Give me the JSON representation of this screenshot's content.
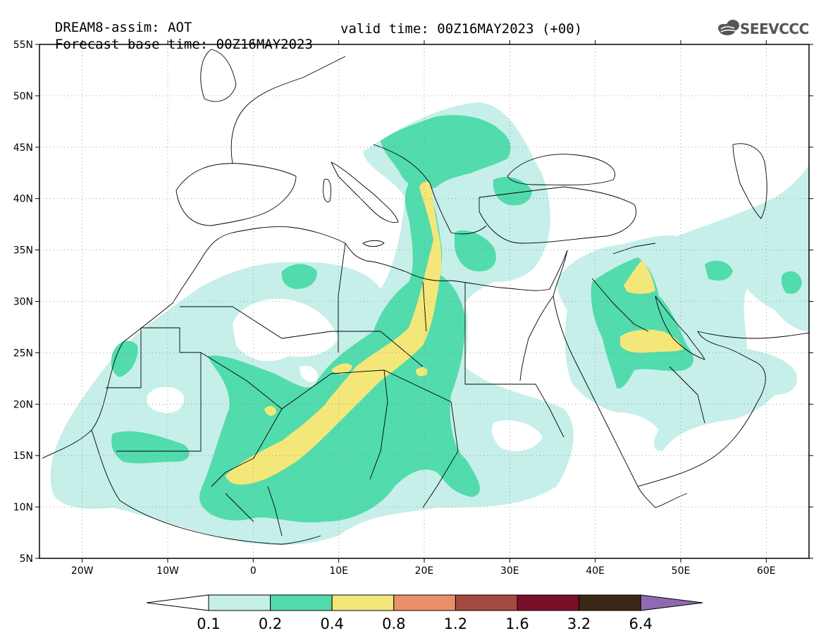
{
  "header": {
    "line1": "DREAM8-assim: AOT",
    "line2_base": "Forecast base time: 00Z16MAY2023",
    "line2_valid": "valid time: 00Z16MAY2023 (+00)"
  },
  "logo": {
    "text": "SEEVCCC",
    "icon": "cloud-icon"
  },
  "map": {
    "lon_range": [
      -25,
      65
    ],
    "lat_range": [
      5,
      55
    ],
    "lat_ticks": [
      {
        "value": 55,
        "label": "55N"
      },
      {
        "value": 50,
        "label": "50N"
      },
      {
        "value": 45,
        "label": "45N"
      },
      {
        "value": 40,
        "label": "40N"
      },
      {
        "value": 35,
        "label": "35N"
      },
      {
        "value": 30,
        "label": "30N"
      },
      {
        "value": 25,
        "label": "25N"
      },
      {
        "value": 20,
        "label": "20N"
      },
      {
        "value": 15,
        "label": "15N"
      },
      {
        "value": 10,
        "label": "10N"
      },
      {
        "value": 5,
        "label": "5N"
      }
    ],
    "lon_ticks": [
      {
        "value": -20,
        "label": "20W"
      },
      {
        "value": -10,
        "label": "10W"
      },
      {
        "value": 0,
        "label": "0"
      },
      {
        "value": 10,
        "label": "10E"
      },
      {
        "value": 20,
        "label": "20E"
      },
      {
        "value": 30,
        "label": "30E"
      },
      {
        "value": 40,
        "label": "40E"
      },
      {
        "value": 50,
        "label": "50E"
      },
      {
        "value": 60,
        "label": "60E"
      }
    ],
    "grid": "dotted"
  },
  "colorbar": {
    "levels": [
      "0.1",
      "0.2",
      "0.4",
      "0.8",
      "1.2",
      "1.6",
      "3.2",
      "6.4"
    ],
    "colors": [
      "#c6efe9",
      "#52dbac",
      "#f4e77a",
      "#ea9068",
      "#a54a3e",
      "#7a0f2a",
      "#3a2716",
      "#8f6ab0"
    ],
    "under_color": "#ffffff"
  }
}
